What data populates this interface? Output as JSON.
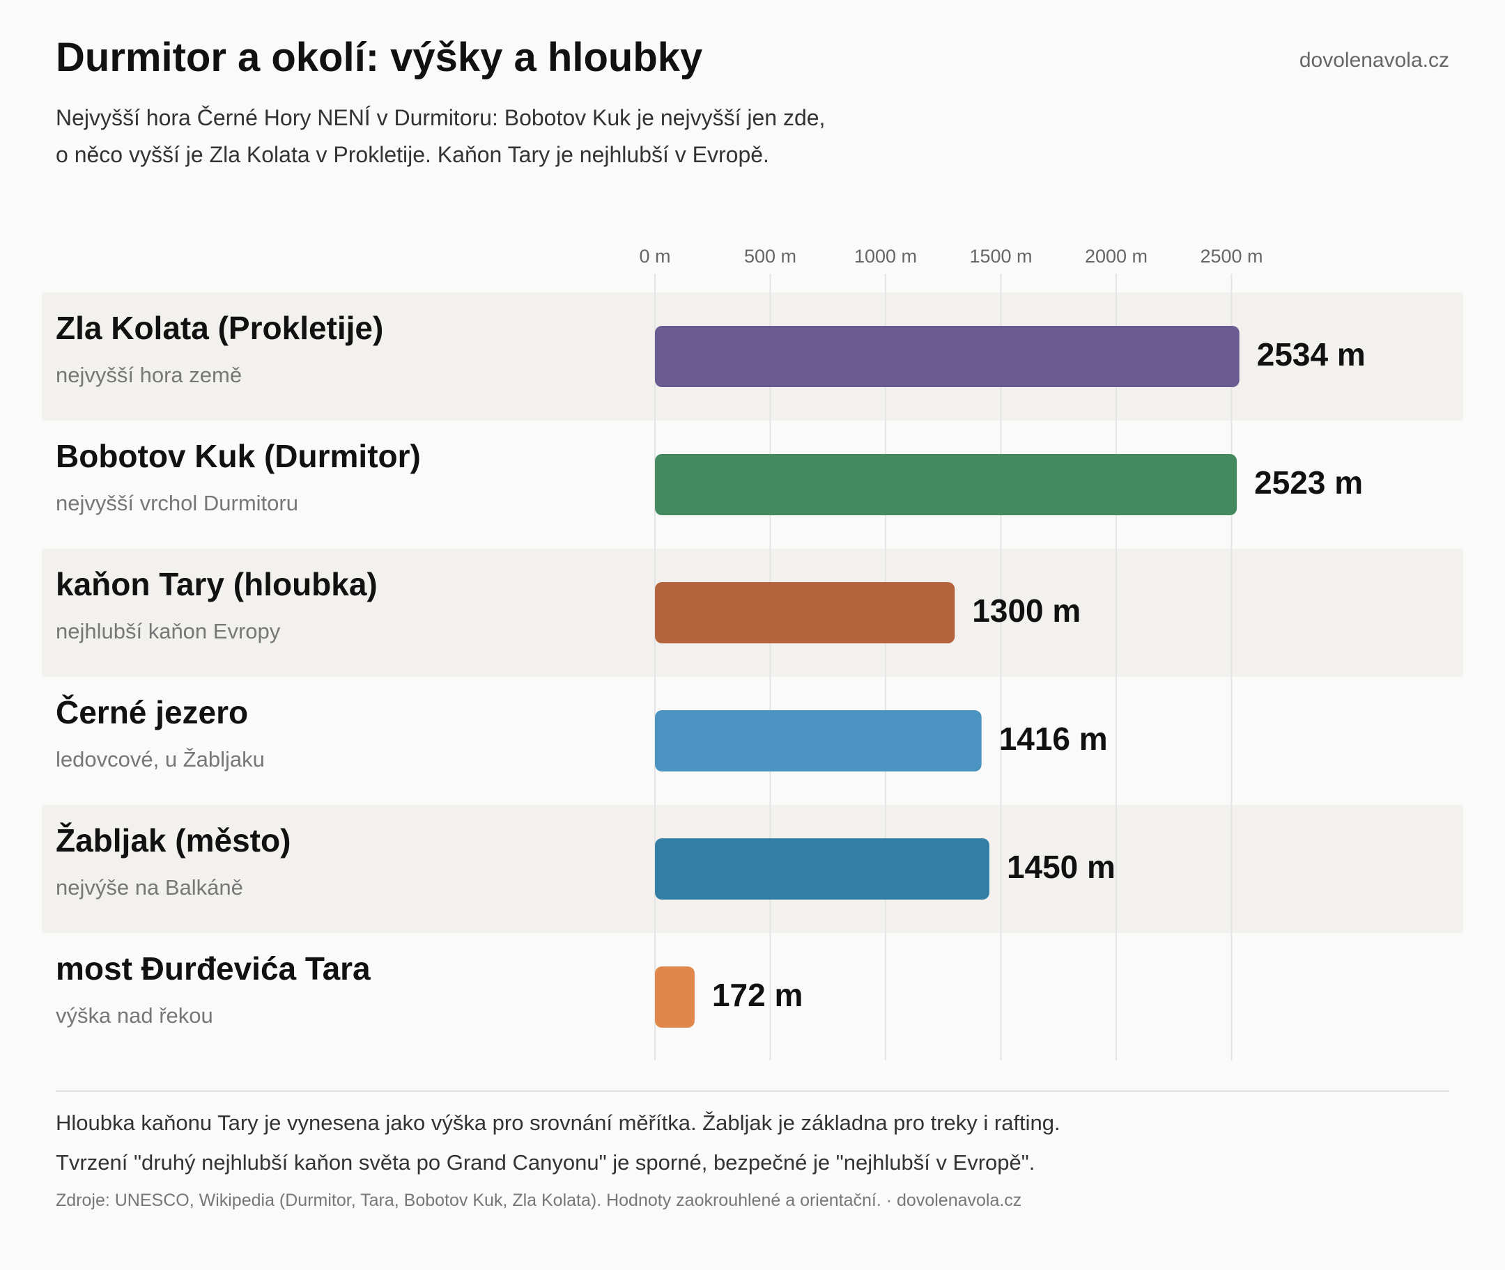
{
  "header": {
    "title": "Durmitor a okolí: výšky a hloubky",
    "brand": "dovolenavola.cz",
    "subtitle_lines": [
      "Nejvyšší hora Černé Hory NENÍ v Durmitoru: Bobotov Kuk je nejvyšší jen zde,",
      "o něco vyšší je Zla Kolata v Prokletije. Kaňon Tary je nejhlubší v Evropě."
    ]
  },
  "chart_data": {
    "type": "bar",
    "orientation": "horizontal",
    "unit": "m",
    "xlim": [
      0,
      2750
    ],
    "ticks": [
      {
        "value": 0,
        "label": "0 m"
      },
      {
        "value": 500,
        "label": "500 m"
      },
      {
        "value": 1000,
        "label": "1000 m"
      },
      {
        "value": 1500,
        "label": "1500 m"
      },
      {
        "value": 2000,
        "label": "2000 m"
      },
      {
        "value": 2500,
        "label": "2500 m"
      }
    ],
    "grid": true,
    "rows": [
      {
        "name": "Zla Kolata (Prokletije)",
        "note": "nejvyšší hora země",
        "value": 2534,
        "value_label": "2534 m",
        "color": "#6a5c93"
      },
      {
        "name": "Bobotov Kuk (Durmitor)",
        "note": "nejvyšší vrchol Durmitoru",
        "value": 2523,
        "value_label": "2523 m",
        "color": "#458a5f"
      },
      {
        "name": "kaňon Tary (hloubka)",
        "note": "nejhlubší kaňon Evropy",
        "value": 1300,
        "value_label": "1300 m",
        "color": "#b5653d"
      },
      {
        "name": "Černé jezero",
        "note": "ledovcové, u Žabljaku",
        "value": 1416,
        "value_label": "1416 m",
        "color": "#4b93c0"
      },
      {
        "name": "Žabljak (město)",
        "note": "nejvýše na Balkáně",
        "value": 1450,
        "value_label": "1450 m",
        "color": "#327ea5"
      },
      {
        "name": "most Đurđevića Tara",
        "note": "výška nad řekou",
        "value": 172,
        "value_label": "172 m",
        "color": "#e0874b"
      }
    ],
    "band_color": "#f3f1ee"
  },
  "footer": {
    "notes": [
      "Hloubka kaňonu Tary je vynesena jako výška pro srovnání měřítka. Žabljak je základna pro treky i rafting.",
      "Tvrzení \"druhý nejhlubší kaňon světa po Grand Canyonu\" je sporné, bezpečné je \"nejhlubší v Evropě\"."
    ],
    "sources": "Zdroje: UNESCO, Wikipedia (Durmitor, Tara, Bobotov Kuk, Zla Kolata). Hodnoty zaokrouhlené a orientační. · dovolenavola.cz"
  }
}
